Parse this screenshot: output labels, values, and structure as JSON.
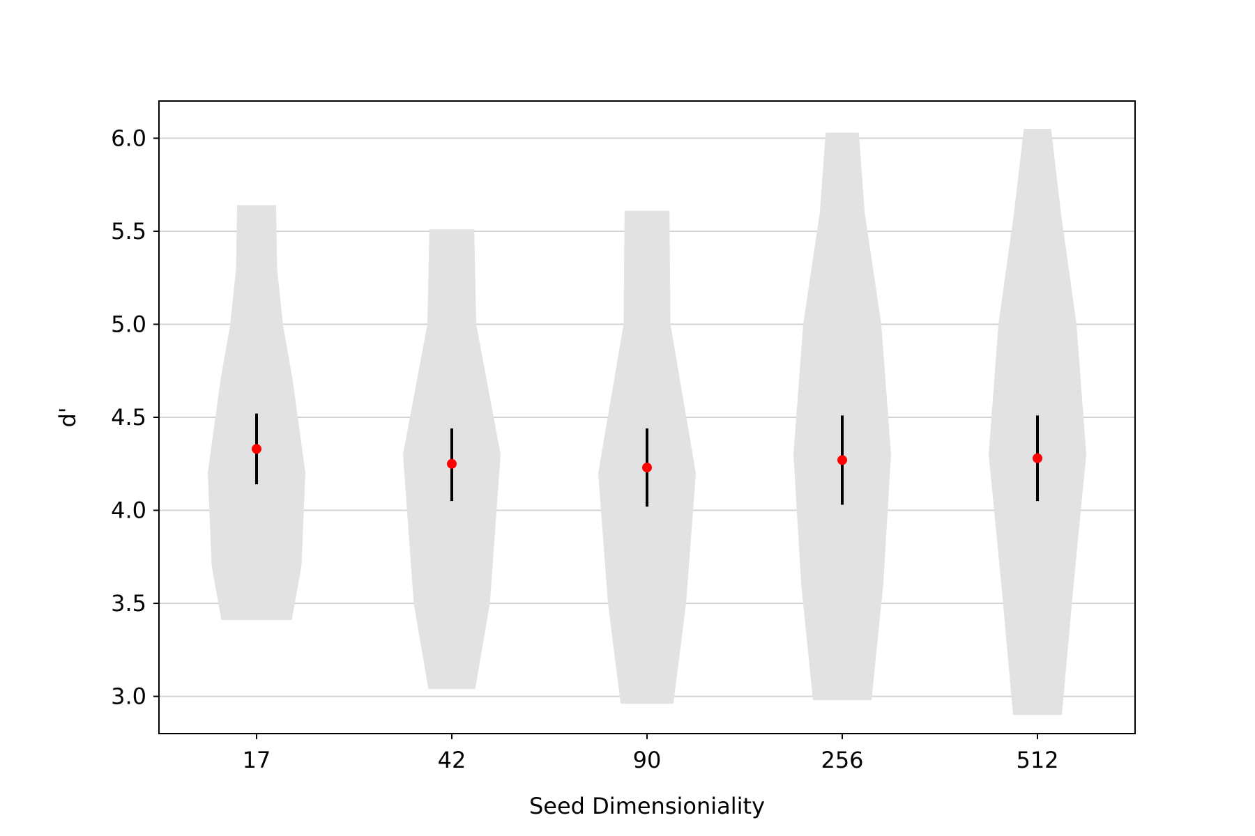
{
  "chart_data": {
    "type": "violin",
    "title": "",
    "xlabel": "Seed Dimensioniality",
    "ylabel": "d'",
    "categories": [
      "17",
      "42",
      "90",
      "256",
      "512"
    ],
    "ylim": [
      2.8,
      6.2
    ],
    "yticks": [
      3.0,
      3.5,
      4.0,
      4.5,
      5.0,
      5.5,
      6.0
    ],
    "ytick_labels": [
      "3.0",
      "3.5",
      "4.0",
      "4.5",
      "5.0",
      "5.5",
      "6.0"
    ],
    "grid": "horizontal",
    "colors": {
      "violin": "#e2e2e2",
      "point": "#ff0000",
      "errorbar": "#000000",
      "grid": "#d3d3d3"
    },
    "violins": [
      {
        "category": "17",
        "min": 3.41,
        "max": 5.64,
        "density": [
          [
            3.41,
            0.36
          ],
          [
            3.7,
            0.46
          ],
          [
            4.2,
            0.5
          ],
          [
            4.7,
            0.37
          ],
          [
            5.0,
            0.27
          ],
          [
            5.3,
            0.21
          ],
          [
            5.64,
            0.2
          ]
        ]
      },
      {
        "category": "42",
        "min": 3.04,
        "max": 5.51,
        "density": [
          [
            3.04,
            0.24
          ],
          [
            3.5,
            0.39
          ],
          [
            4.3,
            0.5
          ],
          [
            5.0,
            0.25
          ],
          [
            5.51,
            0.23
          ]
        ]
      },
      {
        "category": "90",
        "min": 2.96,
        "max": 5.61,
        "density": [
          [
            2.96,
            0.27
          ],
          [
            3.5,
            0.4
          ],
          [
            4.2,
            0.5
          ],
          [
            5.0,
            0.24
          ],
          [
            5.61,
            0.23
          ]
        ]
      },
      {
        "category": "256",
        "min": 2.98,
        "max": 6.03,
        "density": [
          [
            2.98,
            0.3
          ],
          [
            3.6,
            0.42
          ],
          [
            4.3,
            0.5
          ],
          [
            5.0,
            0.4
          ],
          [
            5.6,
            0.23
          ],
          [
            6.03,
            0.17
          ]
        ]
      },
      {
        "category": "512",
        "min": 2.9,
        "max": 6.05,
        "density": [
          [
            2.9,
            0.25
          ],
          [
            3.6,
            0.37
          ],
          [
            4.3,
            0.5
          ],
          [
            5.0,
            0.4
          ],
          [
            5.6,
            0.24
          ],
          [
            6.05,
            0.14
          ]
        ]
      }
    ],
    "points": [
      {
        "category": "17",
        "mean": 4.33,
        "low": 4.14,
        "high": 4.52
      },
      {
        "category": "42",
        "mean": 4.25,
        "low": 4.05,
        "high": 4.44
      },
      {
        "category": "90",
        "mean": 4.23,
        "low": 4.02,
        "high": 4.44
      },
      {
        "category": "256",
        "mean": 4.27,
        "low": 4.03,
        "high": 4.51
      },
      {
        "category": "512",
        "mean": 4.28,
        "low": 4.05,
        "high": 4.51
      }
    ]
  }
}
